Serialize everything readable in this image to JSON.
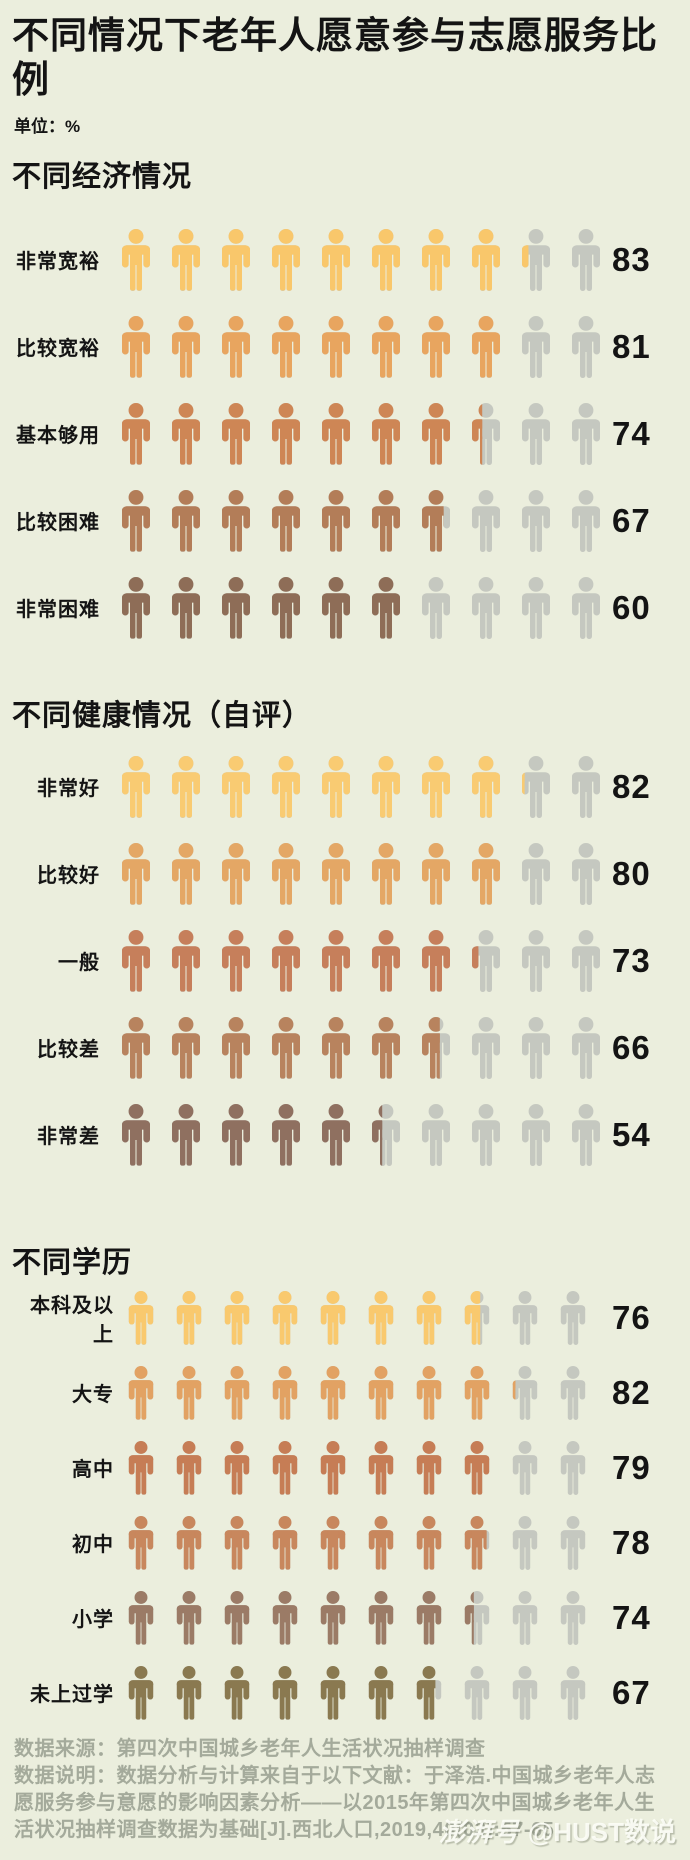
{
  "header": {
    "title": "不同情况下老年人愿意参与志愿服务比例",
    "unit_label": "单位：%"
  },
  "colors": {
    "background": "#EBEEDD",
    "icon_gray": "#C5C8C0",
    "text": "#141414",
    "footer_text": "#A4AA9B"
  },
  "chart_data": {
    "type": "pictogram",
    "icons_per_row": 10,
    "unit": "%",
    "icon_glyph": "person",
    "legend_position": "none",
    "sections": [
      {
        "title": "不同经济情况",
        "rows": [
          {
            "label": "非常宽裕",
            "value": 83,
            "color": "#F9C76B"
          },
          {
            "label": "比较宽裕",
            "value": 81,
            "color": "#E8A55F"
          },
          {
            "label": "基本够用",
            "value": 74,
            "color": "#CE8655"
          },
          {
            "label": "比较困难",
            "value": 67,
            "color": "#B37D58"
          },
          {
            "label": "非常困难",
            "value": 60,
            "color": "#8E6D57"
          }
        ]
      },
      {
        "title": "不同健康情况（自评）",
        "rows": [
          {
            "label": "非常好",
            "value": 82,
            "color": "#F9CB72"
          },
          {
            "label": "比较好",
            "value": 80,
            "color": "#E4A765"
          },
          {
            "label": "一般",
            "value": 73,
            "color": "#C67F5B"
          },
          {
            "label": "比较差",
            "value": 66,
            "color": "#B8835E"
          },
          {
            "label": "非常差",
            "value": 54,
            "color": "#8F7060"
          }
        ]
      },
      {
        "title": "不同学历",
        "rows": [
          {
            "label": "本科及以上",
            "value": 76,
            "color": "#F9C96E"
          },
          {
            "label": "大专",
            "value": 82,
            "color": "#E2A263"
          },
          {
            "label": "高中",
            "value": 79,
            "color": "#C67D55"
          },
          {
            "label": "初中",
            "value": 78,
            "color": "#C8875D"
          },
          {
            "label": "小学",
            "value": 74,
            "color": "#9B7B66"
          },
          {
            "label": "未上过学",
            "value": 67,
            "color": "#8A7950"
          }
        ]
      }
    ]
  },
  "footer": {
    "source": "数据来源：第四次中国城乡老年人生活状况抽样调查",
    "note": "数据说明：数据分析与计算来自于以下文献：于泽浩.中国城乡老年人志愿服务参与意愿的影响因素分析——以2015年第四次中国城乡老年人生活状况抽样调查数据为基础[J].西北人口,2019,40(03):57-65.",
    "watermark_logo": "澎湃号",
    "watermark_handle": "@HUST数说"
  }
}
